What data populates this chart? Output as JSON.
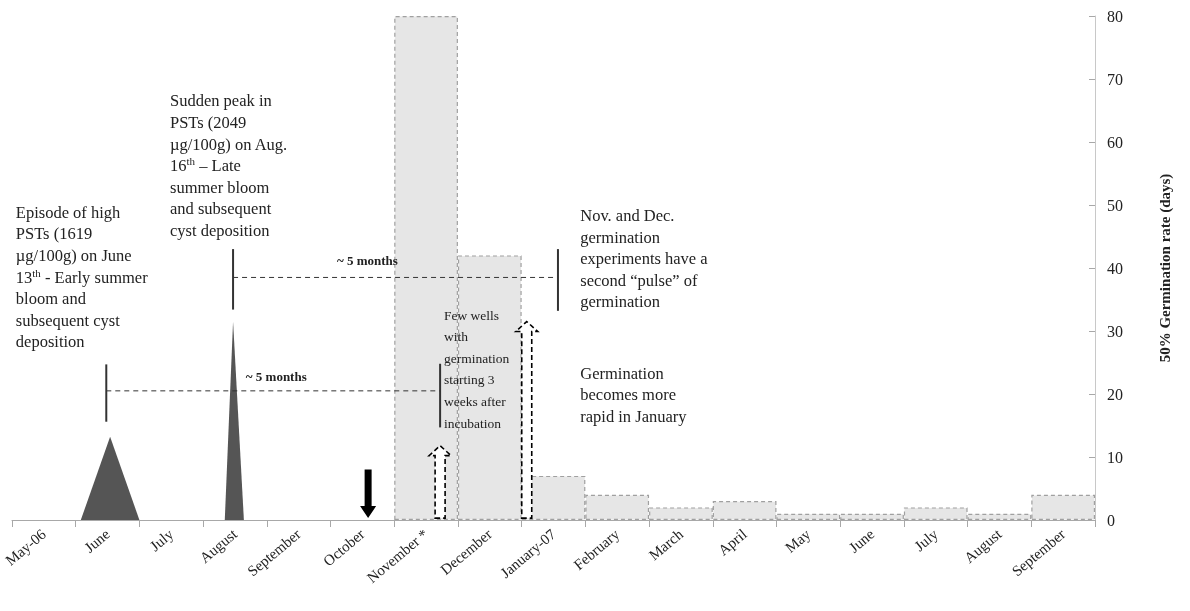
{
  "chart_data": {
    "type": "bar",
    "ylabel": "50% Germination rate (days)",
    "categories": [
      "May-06",
      "June",
      "July",
      "August",
      "September",
      "October",
      "November *",
      "December",
      "January-07",
      "February",
      "March",
      "April",
      "May",
      "June",
      "July",
      "August",
      "September"
    ],
    "values": [
      null,
      null,
      null,
      null,
      null,
      null,
      80,
      42,
      7,
      4,
      2,
      3,
      1,
      1,
      2,
      1,
      4
    ],
    "color": "#e6e6e6",
    "ylim": [
      0,
      80
    ],
    "yticks": [
      0,
      10,
      20,
      30,
      40,
      50,
      60,
      70,
      80
    ],
    "grid": false,
    "annotations": [
      "Episode of high PSTs  (1619 µg/100g) on June 13$^{th}$ -  Early summer bloom and subsequent cyst deposition",
      "Sudden peak in PSTs  (2049 µg/100g) on Aug. 16$^{th}$ – Late summer bloom and subsequent cyst deposition",
      "~ 5 months",
      "~ 5 months",
      "Few wells with germination starting 3 weeks after incubation",
      "Nov. and Dec. germination experiments have a second “pulse” of germination",
      "Germination becomes more rapid in January"
    ]
  }
}
